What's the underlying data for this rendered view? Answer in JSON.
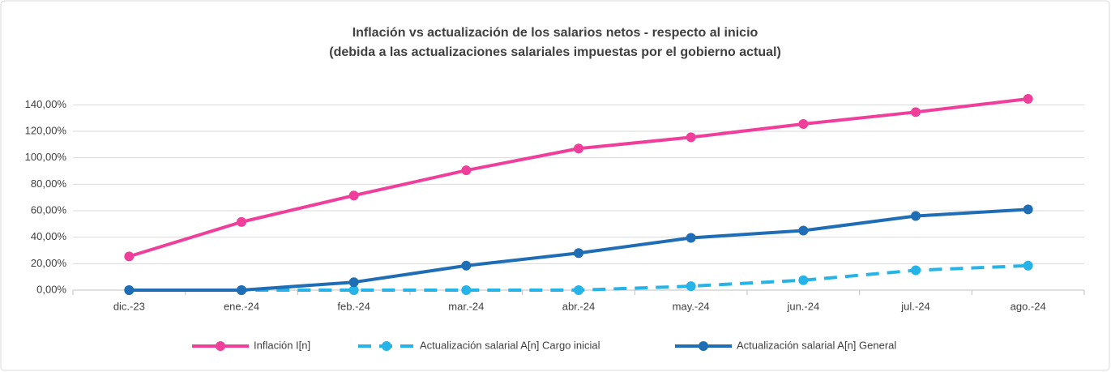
{
  "chart_data": {
    "type": "line",
    "title": "Inflación vs actualización de los salarios netos - respecto al inicio",
    "subtitle": "(debida a las actualizaciones salariales impuestas por el gobierno actual)",
    "categories": [
      "dic.-23",
      "ene.-24",
      "feb.-24",
      "mar.-24",
      "abr.-24",
      "may.-24",
      "jun.-24",
      "jul.-24",
      "ago.-24"
    ],
    "series": [
      {
        "name": "Inflación I[n]",
        "color": "#ef3f9b",
        "dashed": false,
        "values": [
          25.5,
          51.5,
          71.5,
          90.5,
          107,
          115.5,
          125.5,
          134.5,
          144.5
        ]
      },
      {
        "name": "Actualización salarial A[n] Cargo inicial",
        "color": "#25b3e8",
        "dashed": true,
        "values": [
          0,
          0,
          0,
          0,
          0,
          3,
          7.5,
          15,
          18.5
        ]
      },
      {
        "name": "Actualización salarial A[n] General",
        "color": "#1f6db5",
        "dashed": false,
        "values": [
          0,
          0,
          6,
          18.5,
          28,
          39.5,
          45,
          56,
          61
        ]
      }
    ],
    "ylim": [
      0,
      150
    ],
    "yticks": [
      {
        "value": 0,
        "label": "0,00%"
      },
      {
        "value": 20,
        "label": "20,00%"
      },
      {
        "value": 40,
        "label": "40,00%"
      },
      {
        "value": 60,
        "label": "60,00%"
      },
      {
        "value": 80,
        "label": "80,00%"
      },
      {
        "value": 100,
        "label": "100,00%"
      },
      {
        "value": 120,
        "label": "120,00%"
      },
      {
        "value": 140,
        "label": "140,00%"
      }
    ],
    "grid": true,
    "legend": "bottom"
  }
}
